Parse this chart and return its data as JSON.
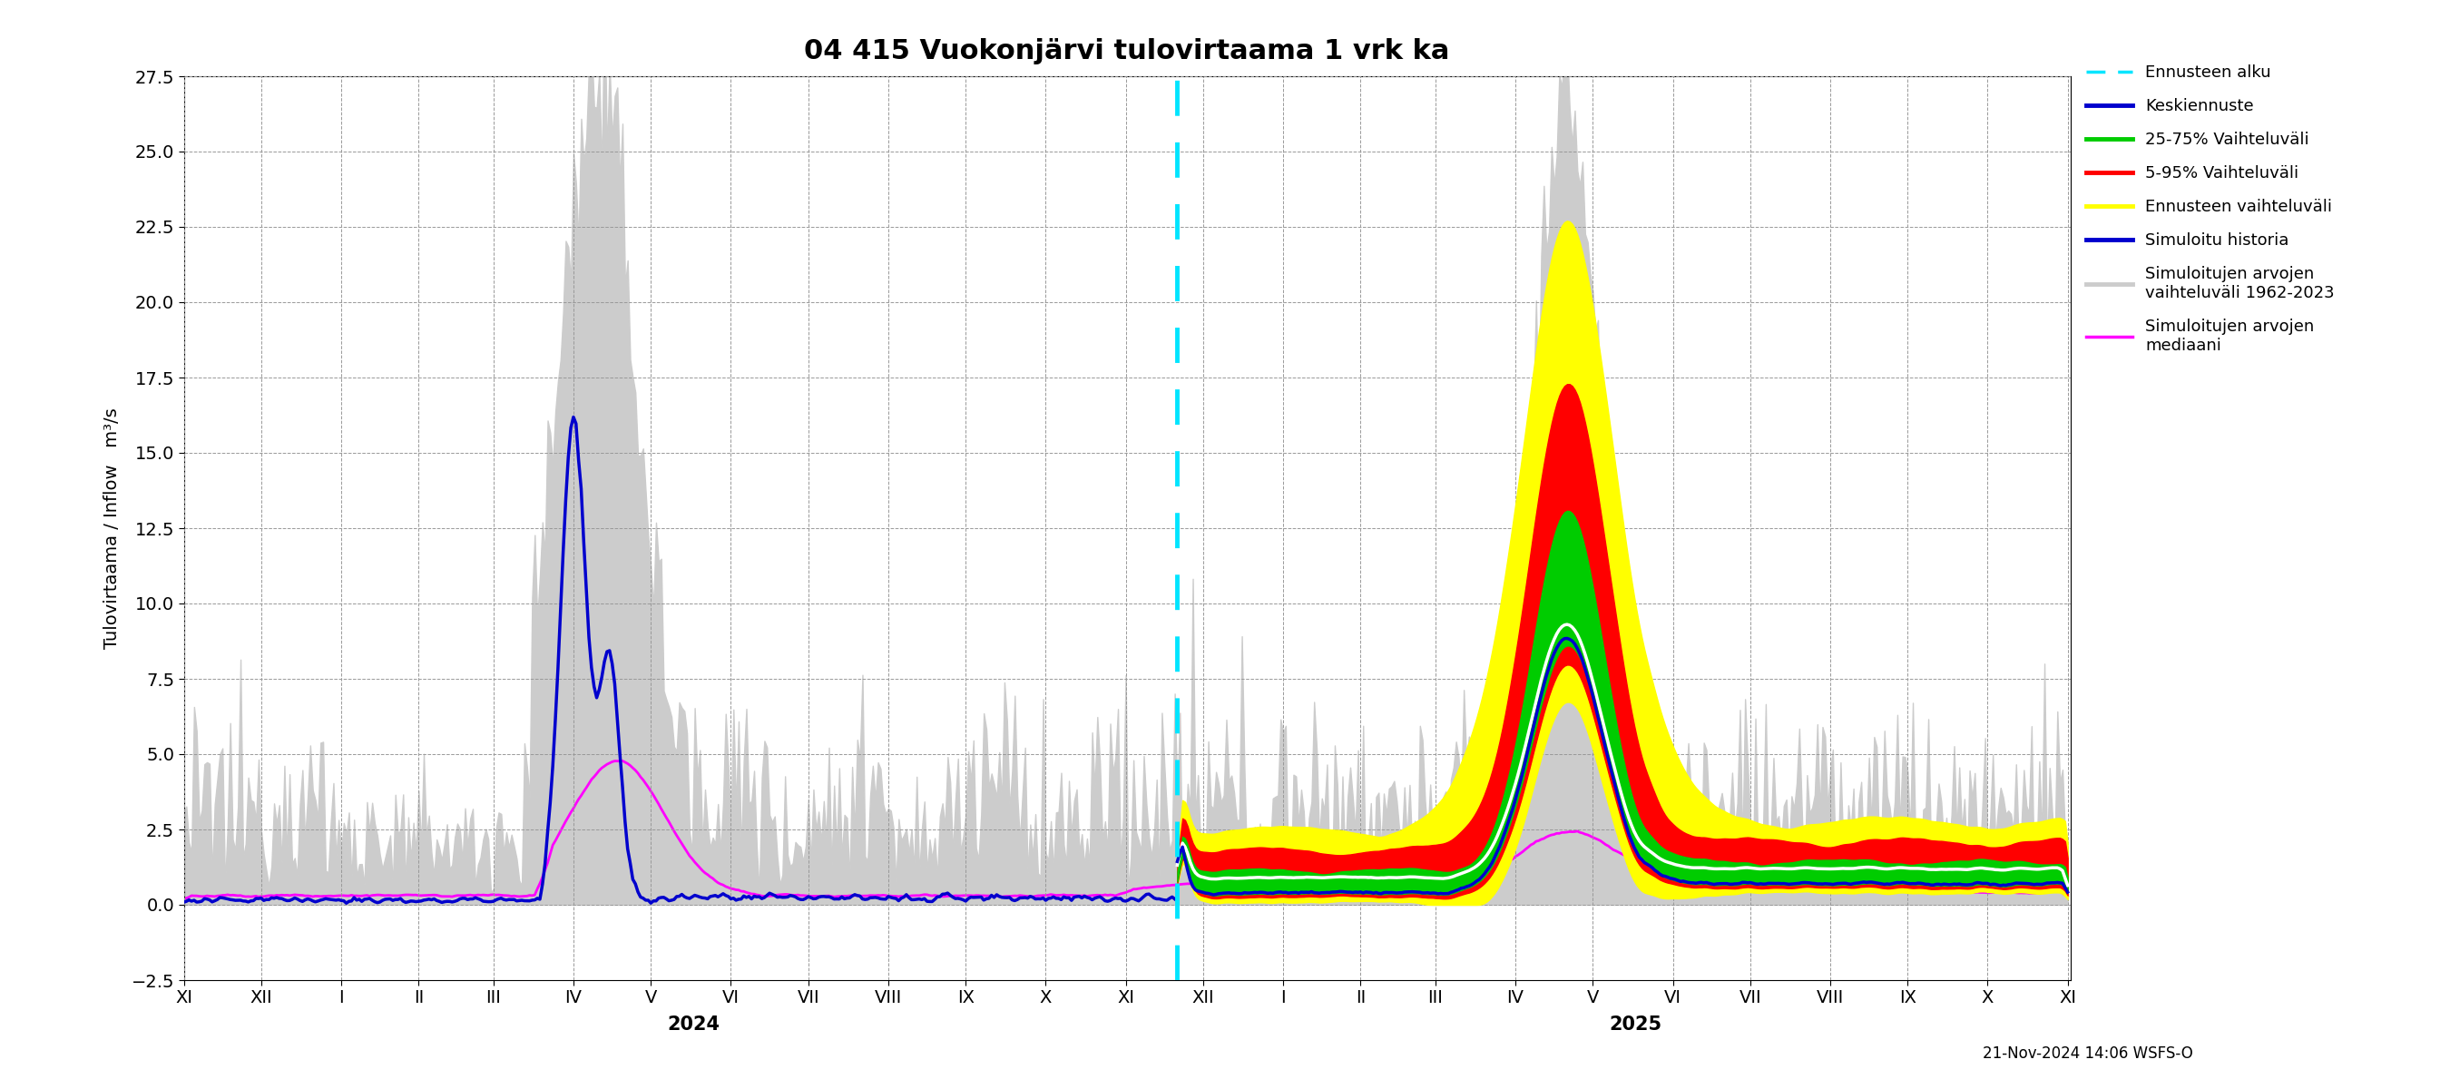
{
  "title": "04 415 Vuokonjärvi tulovirtaama 1 vrk ka",
  "ylabel": "Tulovirtaama / Inflow   m³/s",
  "ylim": [
    -2.5,
    27.5
  ],
  "yticks": [
    -2.5,
    0.0,
    2.5,
    5.0,
    7.5,
    10.0,
    12.5,
    15.0,
    17.5,
    20.0,
    22.5,
    25.0,
    27.5
  ],
  "background_color": "#ffffff",
  "grid_color": "#999999",
  "timestamp_label": "21-Nov-2024 14:06 WSFS-O",
  "month_labels": [
    "XI",
    "XII",
    "I",
    "II",
    "III",
    "IV",
    "V",
    "VI",
    "VII",
    "VIII",
    "IX",
    "X",
    "XI",
    "XII",
    "I",
    "II",
    "III",
    "IV",
    "V",
    "VI",
    "VII",
    "VIII",
    "IX",
    "X",
    "XI"
  ],
  "year_2024_label": "2024",
  "year_2025_label": "2025"
}
